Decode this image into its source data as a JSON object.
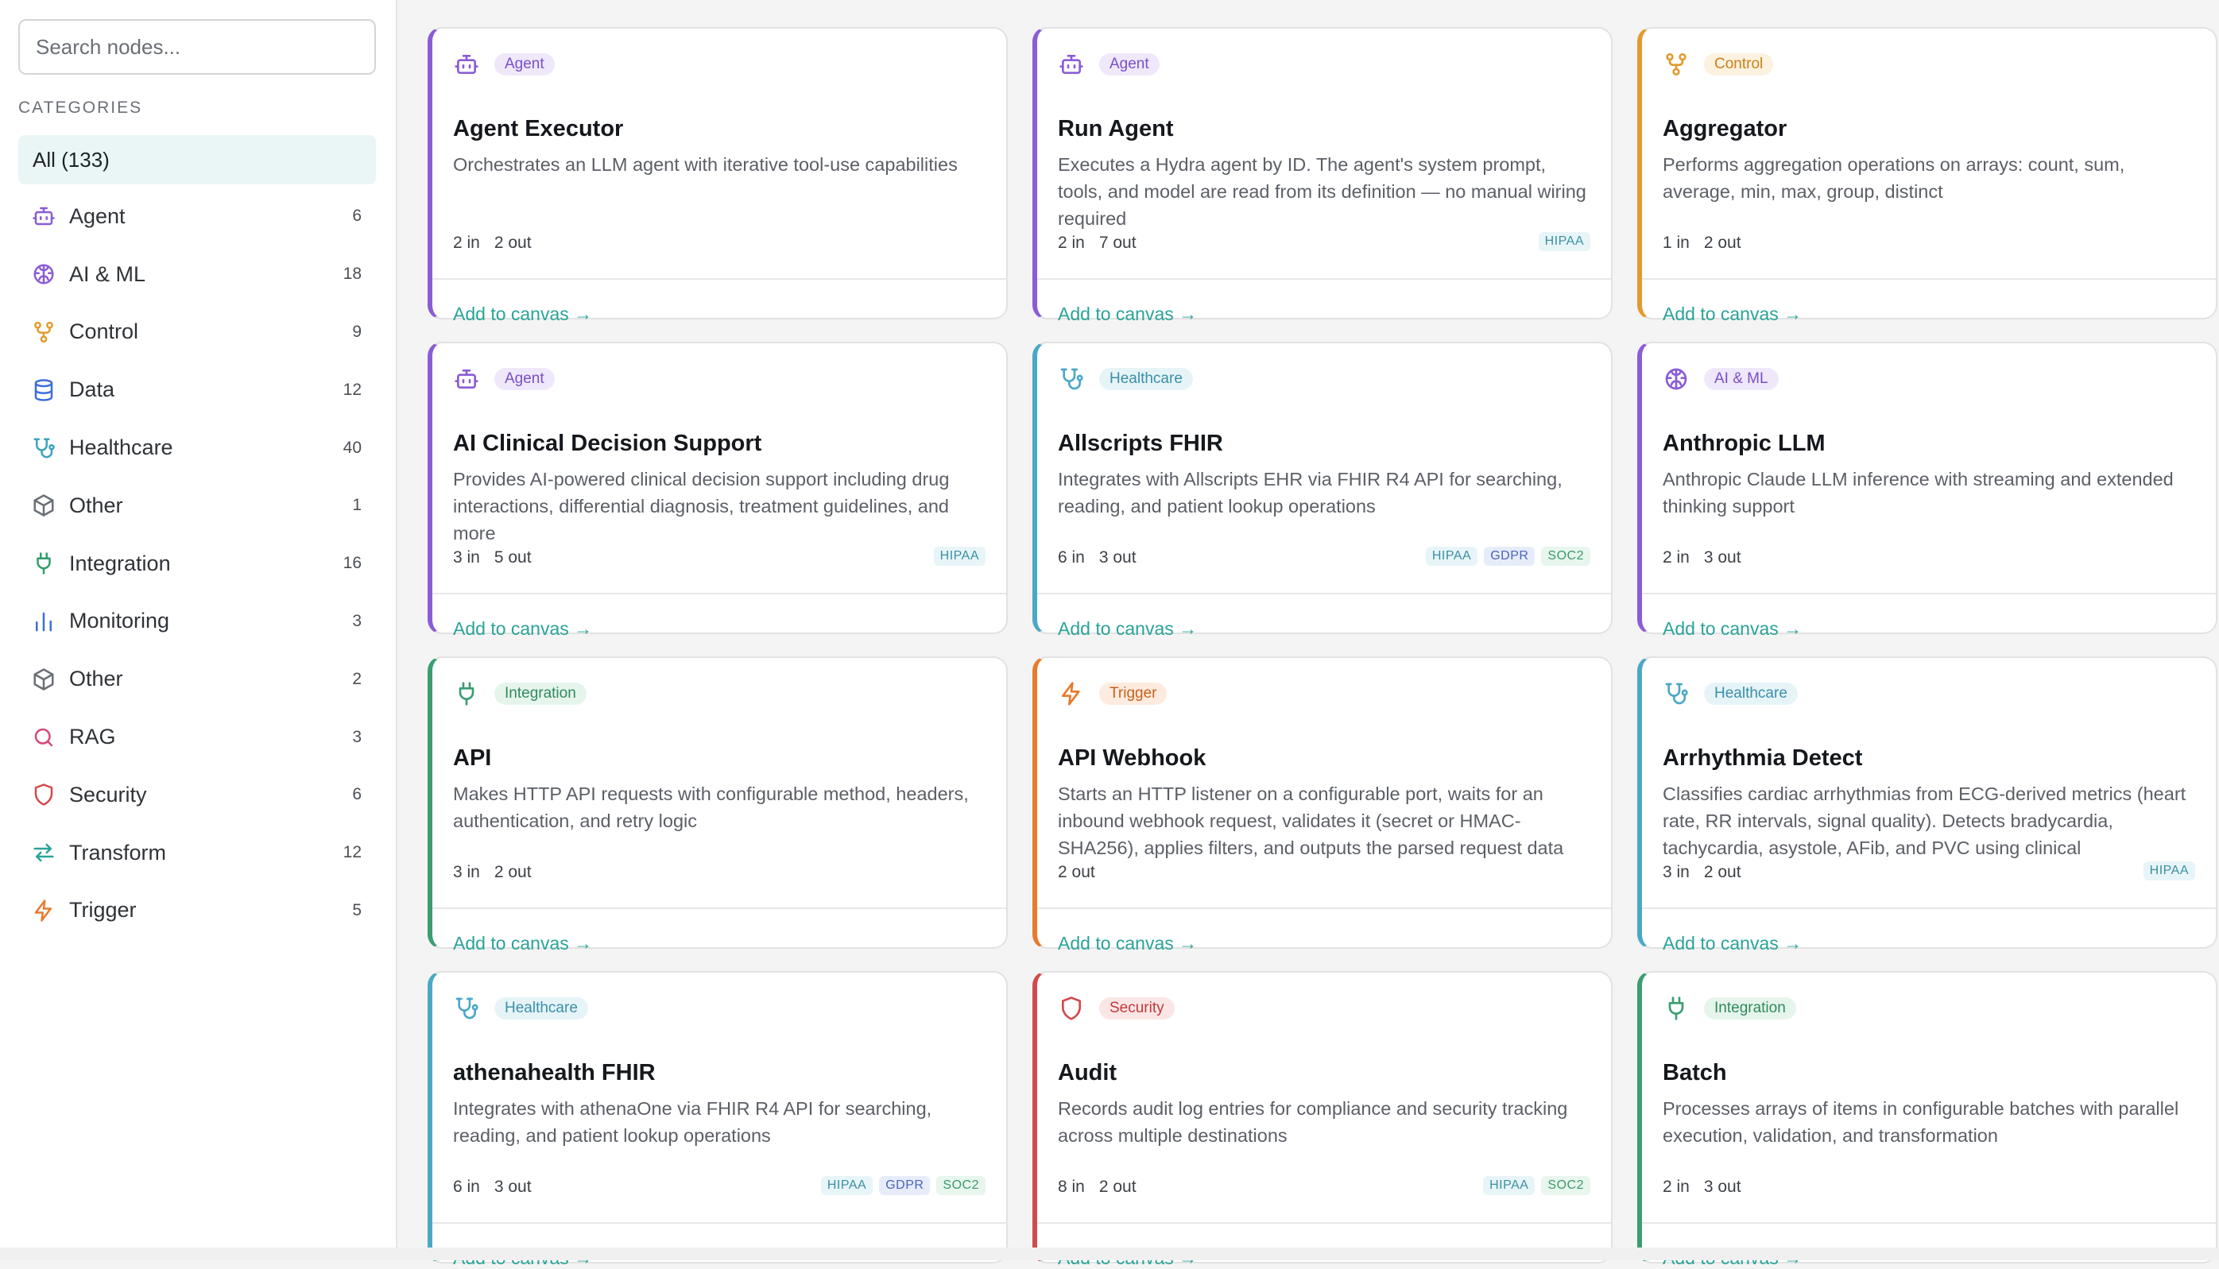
{
  "sidebar": {
    "search_placeholder": "Search nodes...",
    "categories_heading": "CATEGORIES",
    "all_label": "All (133)",
    "categories": [
      {
        "label": "Agent",
        "count": "6",
        "icon": "robot-icon",
        "color": "#8b5cd6"
      },
      {
        "label": "AI & ML",
        "count": "18",
        "icon": "brain-icon",
        "color": "#8b5cd6"
      },
      {
        "label": "Control",
        "count": "9",
        "icon": "branch-icon",
        "color": "#e39a2d"
      },
      {
        "label": "Data",
        "count": "12",
        "icon": "database-icon",
        "color": "#3b6fd8"
      },
      {
        "label": "Healthcare",
        "count": "40",
        "icon": "stethoscope-icon",
        "color": "#3aa3c0"
      },
      {
        "label": "Other",
        "count": "1",
        "icon": "cube-icon",
        "color": "#6b6f76"
      },
      {
        "label": "Integration",
        "count": "16",
        "icon": "plug-icon",
        "color": "#2f9e6b"
      },
      {
        "label": "Monitoring",
        "count": "3",
        "icon": "bar-chart-icon",
        "color": "#3b6fd8"
      },
      {
        "label": "Other",
        "count": "2",
        "icon": "cube-icon",
        "color": "#6b6f76"
      },
      {
        "label": "RAG",
        "count": "3",
        "icon": "search-icon",
        "color": "#d8467a"
      },
      {
        "label": "Security",
        "count": "6",
        "icon": "shield-icon",
        "color": "#d24a4a"
      },
      {
        "label": "Transform",
        "count": "12",
        "icon": "arrows-icon",
        "color": "#2aa398"
      },
      {
        "label": "Trigger",
        "count": "5",
        "icon": "lightning-icon",
        "color": "#e87a2d"
      }
    ]
  },
  "add_label": "Add to canvas →",
  "category_colors": {
    "Agent": {
      "accent": "#8b5cd6",
      "badge_bg": "#efe8fb",
      "badge_fg": "#7a4fc6"
    },
    "AI & ML": {
      "accent": "#8b5cd6",
      "badge_bg": "#efe8fb",
      "badge_fg": "#7a4fc6"
    },
    "Control": {
      "accent": "#e39a2d",
      "badge_bg": "#fdf1e0",
      "badge_fg": "#c98118"
    },
    "Healthcare": {
      "accent": "#4aa8c6",
      "badge_bg": "#e6f4f8",
      "badge_fg": "#3a8fa8"
    },
    "Integration": {
      "accent": "#3a9e70",
      "badge_bg": "#e6f5ec",
      "badge_fg": "#2f8a5d"
    },
    "Trigger": {
      "accent": "#e87a2d",
      "badge_bg": "#fdebdf",
      "badge_fg": "#c8611a"
    },
    "Security": {
      "accent": "#d24a4a",
      "badge_bg": "#fbe6e6",
      "badge_fg": "#c23a3a"
    }
  },
  "nodes": [
    {
      "title": "Agent Executor",
      "category": "Agent",
      "icon": "robot-icon",
      "desc": "Orchestrates an LLM agent with iterative tool-use capabilities",
      "inputs": "2 in",
      "outputs": "2 out",
      "tags": []
    },
    {
      "title": "Run Agent",
      "category": "Agent",
      "icon": "robot-icon",
      "desc": "Executes a Hydra agent by ID. The agent's system prompt, tools, and model are read from its definition — no manual wiring required",
      "inputs": "2 in",
      "outputs": "7 out",
      "tags": [
        "HIPAA"
      ]
    },
    {
      "title": "Aggregator",
      "category": "Control",
      "icon": "branch-icon",
      "desc": "Performs aggregation operations on arrays: count, sum, average, min, max, group, distinct",
      "inputs": "1 in",
      "outputs": "2 out",
      "tags": []
    },
    {
      "title": "AI Clinical Decision Support",
      "category": "Agent",
      "icon": "robot-icon",
      "desc": "Provides AI-powered clinical decision support including drug interactions, differential diagnosis, treatment guidelines, and more",
      "inputs": "3 in",
      "outputs": "5 out",
      "tags": [
        "HIPAA"
      ]
    },
    {
      "title": "Allscripts FHIR",
      "category": "Healthcare",
      "icon": "stethoscope-icon",
      "desc": "Integrates with Allscripts EHR via FHIR R4 API for searching, reading, and patient lookup operations",
      "inputs": "6 in",
      "outputs": "3 out",
      "tags": [
        "HIPAA",
        "GDPR",
        "SOC2"
      ]
    },
    {
      "title": "Anthropic LLM",
      "category": "AI & ML",
      "icon": "brain-icon",
      "desc": "Anthropic Claude LLM inference with streaming and extended thinking support",
      "inputs": "2 in",
      "outputs": "3 out",
      "tags": []
    },
    {
      "title": "API",
      "category": "Integration",
      "icon": "plug-icon",
      "desc": "Makes HTTP API requests with configurable method, headers, authentication, and retry logic",
      "inputs": "3 in",
      "outputs": "2 out",
      "tags": []
    },
    {
      "title": "API Webhook",
      "category": "Trigger",
      "icon": "lightning-icon",
      "desc": "Starts an HTTP listener on a configurable port, waits for an inbound webhook request, validates it (secret or HMAC-SHA256), applies filters, and outputs the parsed request data",
      "inputs": "",
      "outputs": "2 out",
      "tags": []
    },
    {
      "title": "Arrhythmia Detect",
      "category": "Healthcare",
      "icon": "stethoscope-icon",
      "desc": "Classifies cardiac arrhythmias from ECG-derived metrics (heart rate, RR intervals, signal quality). Detects bradycardia, tachycardia, asystole, AFib, and PVC using clinical",
      "inputs": "3 in",
      "outputs": "2 out",
      "tags": [
        "HIPAA"
      ]
    },
    {
      "title": "athenahealth FHIR",
      "category": "Healthcare",
      "icon": "stethoscope-icon",
      "desc": "Integrates with athenaOne via FHIR R4 API for searching, reading, and patient lookup operations",
      "inputs": "6 in",
      "outputs": "3 out",
      "tags": [
        "HIPAA",
        "GDPR",
        "SOC2"
      ]
    },
    {
      "title": "Audit",
      "category": "Security",
      "icon": "shield-icon",
      "desc": "Records audit log entries for compliance and security tracking across multiple destinations",
      "inputs": "8 in",
      "outputs": "2 out",
      "tags": [
        "HIPAA",
        "SOC2"
      ]
    },
    {
      "title": "Batch",
      "category": "Integration",
      "icon": "plug-icon",
      "desc": "Processes arrays of items in configurable batches with parallel execution, validation, and transformation",
      "inputs": "2 in",
      "outputs": "3 out",
      "tags": []
    }
  ]
}
